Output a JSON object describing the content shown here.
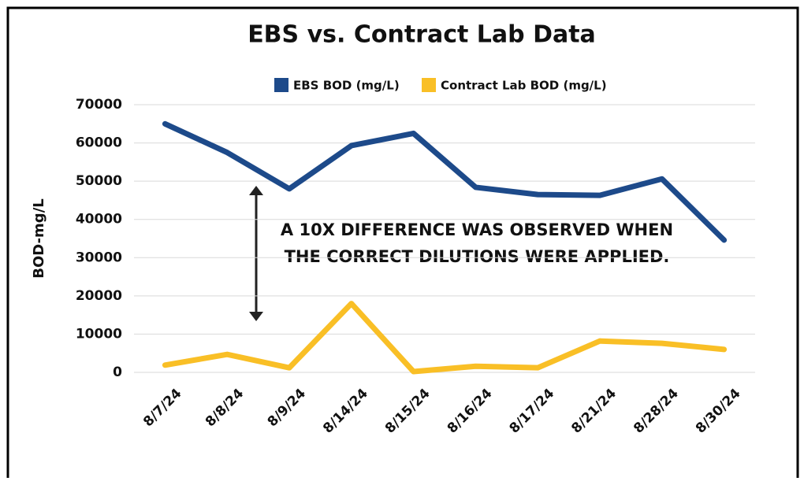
{
  "chart_data": {
    "type": "line",
    "title": "EBS vs. Contract Lab Data",
    "y_label": "BOD-mg/L",
    "annotation": [
      "A 10X DIFFERENCE WAS OBSERVED WHEN",
      "THE CORRECT DILUTIONS WERE APPLIED."
    ],
    "categories": [
      "8/7/24",
      "8/8/24",
      "8/9/24",
      "8/14/24",
      "8/15/24",
      "8/16/24",
      "8/17/24",
      "8/21/24",
      "8/28/24",
      "8/30/24"
    ],
    "series": [
      {
        "name": "EBS BOD (mg/L)",
        "color": "#1d4a8a",
        "values": [
          65000,
          57500,
          48000,
          59300,
          62500,
          48400,
          46500,
          46300,
          50600,
          34600
        ]
      },
      {
        "name": "Contract Lab BOD (mg/L)",
        "color": "#f9bf26",
        "values": [
          1900,
          4700,
          1200,
          18000,
          200,
          1600,
          1200,
          8200,
          7600,
          6000
        ]
      }
    ],
    "ylim": [
      0,
      70000
    ],
    "yticks": [
      0,
      10000,
      20000,
      30000,
      40000,
      50000,
      60000,
      70000
    ],
    "grid": true,
    "legend": "top"
  }
}
